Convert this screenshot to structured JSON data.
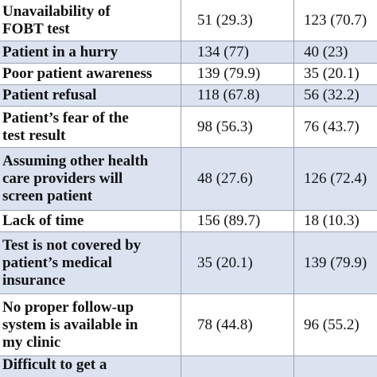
{
  "table": {
    "rows": [
      {
        "label": [
          "Unavailability of",
          "FOBT test"
        ],
        "values": [
          "51 (29.3)",
          "123 (70.7)"
        ]
      },
      {
        "label": [
          "Patient in a hurry"
        ],
        "values": [
          "134 (77)",
          "40 (23)"
        ]
      },
      {
        "label": [
          "Poor patient awareness"
        ],
        "values": [
          "139 (79.9)",
          "35 (20.1)"
        ]
      },
      {
        "label": [
          "Patient refusal"
        ],
        "values": [
          "118 (67.8)",
          "56 (32.2)"
        ]
      },
      {
        "label": [
          "Patient’s fear of the",
          "test result"
        ],
        "values": [
          "98 (56.3)",
          "76 (43.7)"
        ]
      },
      {
        "label": [
          "Assuming other health",
          "care providers will",
          "screen patient"
        ],
        "values": [
          "48 (27.6)",
          "126 (72.4)"
        ]
      },
      {
        "label": [
          "Lack of time"
        ],
        "values": [
          "156 (89.7)",
          "18 (10.3)"
        ]
      },
      {
        "label": [
          "Test is not covered by",
          "patient’s medical",
          "insurance"
        ],
        "values": [
          "35 (20.1)",
          "139 (79.9)"
        ]
      },
      {
        "label": [
          "No proper follow-up",
          "system is available in",
          "my clinic"
        ],
        "values": [
          "78 (44.8)",
          "96 (55.2)"
        ]
      },
      {
        "label": [
          "Difficult to get a"
        ],
        "values": []
      }
    ]
  }
}
